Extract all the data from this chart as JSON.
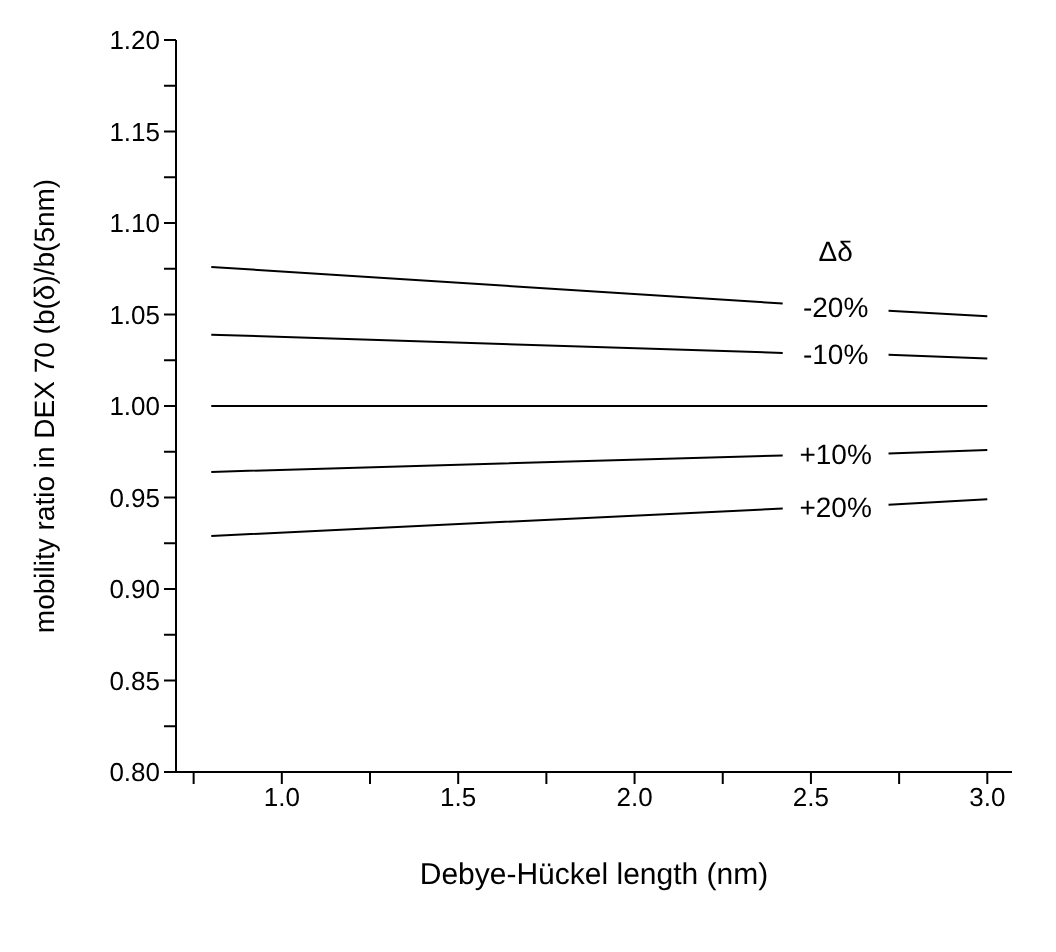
{
  "chart_data": {
    "type": "line",
    "xlabel": "Debye-Hückel length (nm)",
    "ylabel": "mobility ratio in DEX 70 (b(δ)/b(5nm)",
    "legend_title": "Δδ",
    "xlim": [
      0.7,
      3.07
    ],
    "ylim": [
      0.8,
      1.2
    ],
    "xticks": [
      {
        "value": 0.75,
        "label": null
      },
      {
        "value": 1.0,
        "label": "1.0"
      },
      {
        "value": 1.25,
        "label": null
      },
      {
        "value": 1.5,
        "label": "1.5"
      },
      {
        "value": 1.75,
        "label": null
      },
      {
        "value": 2.0,
        "label": "2.0"
      },
      {
        "value": 2.25,
        "label": null
      },
      {
        "value": 2.5,
        "label": "2.5"
      },
      {
        "value": 2.75,
        "label": null
      },
      {
        "value": 3.0,
        "label": "3.0"
      }
    ],
    "yticks": [
      {
        "value": 0.8,
        "label": "0.80"
      },
      {
        "value": 0.825,
        "label": null
      },
      {
        "value": 0.85,
        "label": "0.85"
      },
      {
        "value": 0.875,
        "label": null
      },
      {
        "value": 0.9,
        "label": "0.90"
      },
      {
        "value": 0.925,
        "label": null
      },
      {
        "value": 0.95,
        "label": "0.95"
      },
      {
        "value": 0.975,
        "label": null
      },
      {
        "value": 1.0,
        "label": "1.00"
      },
      {
        "value": 1.025,
        "label": null
      },
      {
        "value": 1.05,
        "label": "1.05"
      },
      {
        "value": 1.075,
        "label": null
      },
      {
        "value": 1.1,
        "label": "1.10"
      },
      {
        "value": 1.125,
        "label": null
      },
      {
        "value": 1.15,
        "label": "1.15"
      },
      {
        "value": 1.175,
        "label": null
      },
      {
        "value": 1.2,
        "label": "1.20"
      }
    ],
    "grid": false,
    "legend": false,
    "marker": "none",
    "line_style": "solid",
    "series": [
      {
        "name": "-20%",
        "color": "#000000",
        "x": [
          0.8,
          2.42,
          2.57,
          2.72,
          3.0
        ],
        "values": [
          1.076,
          1.056,
          null,
          1.052,
          1.049
        ]
      },
      {
        "name": "-10%",
        "color": "#000000",
        "x": [
          0.8,
          2.42,
          2.57,
          2.72,
          3.0
        ],
        "values": [
          1.039,
          1.029,
          null,
          1.028,
          1.026
        ]
      },
      {
        "color": "#000000",
        "x": [
          0.8,
          3.0
        ],
        "values": [
          1.0,
          1.0
        ]
      },
      {
        "name": "+10%",
        "color": "#000000",
        "x": [
          0.8,
          2.42,
          2.57,
          2.72,
          3.0
        ],
        "values": [
          0.964,
          0.973,
          null,
          0.974,
          0.976
        ]
      },
      {
        "name": "+20%",
        "color": "#000000",
        "x": [
          0.8,
          2.42,
          2.57,
          2.72,
          3.0
        ],
        "values": [
          0.929,
          0.944,
          null,
          0.946,
          0.949
        ]
      }
    ]
  }
}
